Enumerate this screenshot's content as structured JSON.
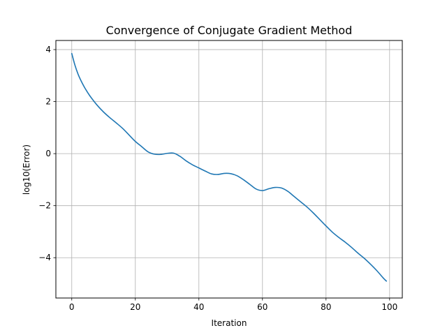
{
  "chart_data": {
    "type": "line",
    "title": "Convergence of Conjugate Gradient Method",
    "xlabel": "Iteration",
    "ylabel": "log10(Error)",
    "xlim": [
      -5,
      104
    ],
    "ylim": [
      -5.55,
      4.35
    ],
    "grid": true,
    "x_ticks": [
      0,
      20,
      40,
      60,
      80,
      100
    ],
    "x_tick_labels": [
      "0",
      "20",
      "40",
      "60",
      "80",
      "100"
    ],
    "y_ticks": [
      -4,
      -2,
      0,
      2,
      4
    ],
    "y_tick_labels": [
      "−4",
      "−2",
      "0",
      "2",
      "4"
    ],
    "series": [
      {
        "color": "#1f77b4",
        "x": [
          0,
          1,
          2,
          3,
          4,
          5,
          6,
          8,
          10,
          12,
          14,
          16,
          18,
          20,
          22,
          24,
          26,
          28,
          30,
          32,
          34,
          36,
          38,
          40,
          42,
          44,
          46,
          48,
          50,
          52,
          54,
          56,
          58,
          60,
          62,
          64,
          66,
          68,
          70,
          72,
          74,
          76,
          78,
          80,
          82,
          84,
          86,
          88,
          90,
          92,
          94,
          96,
          98,
          99
        ],
        "y": [
          3.85,
          3.4,
          3.05,
          2.78,
          2.55,
          2.35,
          2.17,
          1.86,
          1.6,
          1.38,
          1.18,
          0.97,
          0.72,
          0.47,
          0.27,
          0.07,
          -0.02,
          -0.03,
          0.01,
          0.02,
          -0.1,
          -0.28,
          -0.43,
          -0.55,
          -0.67,
          -0.78,
          -0.8,
          -0.76,
          -0.77,
          -0.85,
          -1.0,
          -1.18,
          -1.36,
          -1.42,
          -1.35,
          -1.3,
          -1.32,
          -1.45,
          -1.65,
          -1.85,
          -2.05,
          -2.28,
          -2.53,
          -2.78,
          -3.02,
          -3.22,
          -3.4,
          -3.6,
          -3.82,
          -4.02,
          -4.25,
          -4.5,
          -4.78,
          -4.9
        ]
      }
    ]
  }
}
